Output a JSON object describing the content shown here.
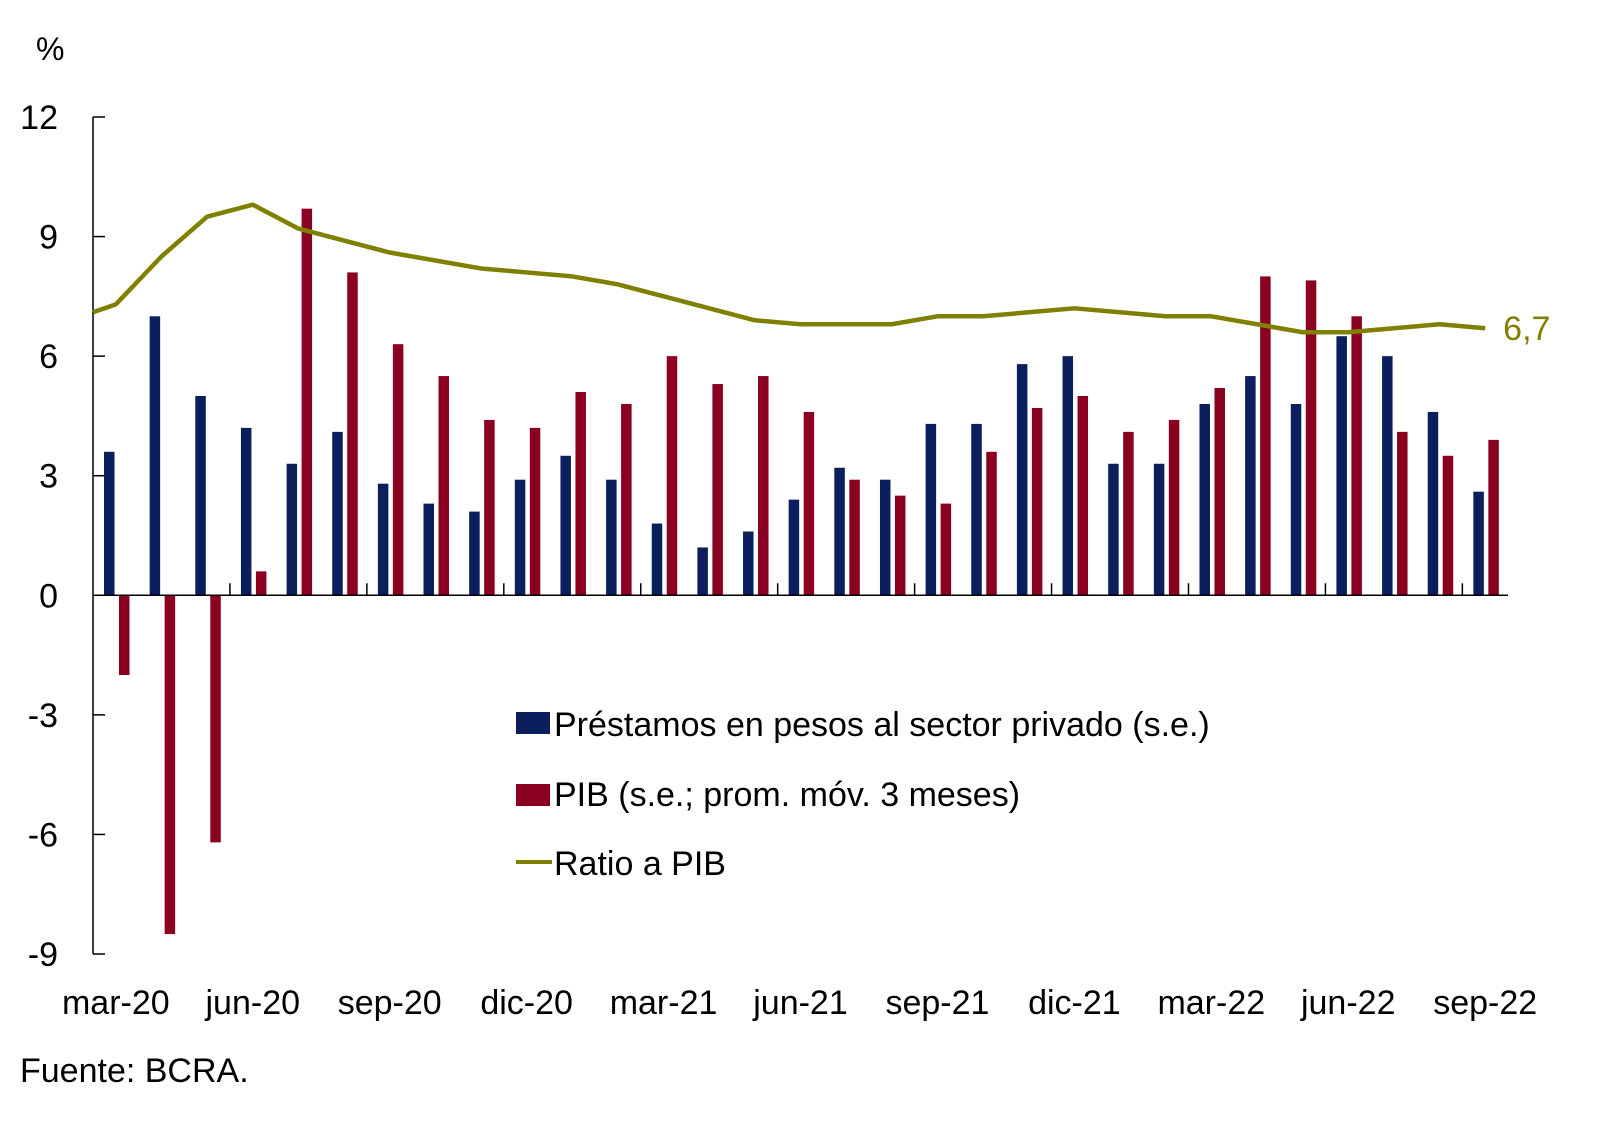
{
  "chart_data": {
    "type": "bar",
    "title": "",
    "ylabel": "%",
    "xlabel": "",
    "ylim": [
      -9,
      12
    ],
    "yticks": [
      12,
      9,
      6,
      3,
      0,
      -3,
      -6,
      -9
    ],
    "ytick_labels": [
      "12",
      "9",
      "6",
      "3",
      "0",
      "-3",
      "-6",
      "-9"
    ],
    "grid": false,
    "legend_position": "center",
    "x": [
      "mar-20",
      "abr-20",
      "may-20",
      "jun-20",
      "jul-20",
      "ago-20",
      "sep-20",
      "oct-20",
      "nov-20",
      "dic-20",
      "ene-21",
      "feb-21",
      "mar-21",
      "abr-21",
      "may-21",
      "jun-21",
      "jul-21",
      "ago-21",
      "sep-21",
      "oct-21",
      "nov-21",
      "dic-21",
      "ene-22",
      "feb-22",
      "mar-22",
      "abr-22",
      "may-22",
      "jun-22",
      "jul-22",
      "ago-22",
      "sep-22"
    ],
    "xtick_labels": [
      "mar-20",
      "jun-20",
      "sep-20",
      "dic-20",
      "mar-21",
      "jun-21",
      "sep-21",
      "dic-21",
      "mar-22",
      "jun-22",
      "sep-22"
    ],
    "xtick_indices": [
      0,
      3,
      6,
      9,
      12,
      15,
      18,
      21,
      24,
      27,
      30
    ],
    "series": [
      {
        "name": "Préstamos en pesos al sector privado (s.e.)",
        "type": "bar",
        "color": "#0a1f5c",
        "values": [
          3.6,
          7.0,
          5.0,
          4.2,
          3.3,
          4.1,
          2.8,
          2.3,
          2.1,
          2.9,
          3.5,
          2.9,
          1.8,
          1.2,
          1.6,
          2.4,
          3.2,
          2.9,
          4.3,
          4.3,
          5.8,
          6.0,
          3.3,
          3.3,
          4.8,
          5.5,
          4.8,
          6.5,
          6.0,
          4.6,
          2.6
        ]
      },
      {
        "name": "PIB (s.e.; prom. móv. 3 meses)",
        "type": "bar",
        "color": "#8b0020",
        "values": [
          -2.0,
          -8.5,
          -6.2,
          0.6,
          9.7,
          8.1,
          6.3,
          5.5,
          4.4,
          4.2,
          5.1,
          4.8,
          6.0,
          5.3,
          5.5,
          4.6,
          2.9,
          2.5,
          2.3,
          3.6,
          4.7,
          5.0,
          4.1,
          4.4,
          5.2,
          8.0,
          7.9,
          7.0,
          4.1,
          3.5,
          3.9
        ]
      },
      {
        "name": "Ratio a PIB",
        "type": "line",
        "color": "#808000",
        "start_value": 7.1,
        "values": [
          7.3,
          8.5,
          9.5,
          9.8,
          9.2,
          8.9,
          8.6,
          8.4,
          8.2,
          8.1,
          8.0,
          7.8,
          7.5,
          7.2,
          6.9,
          6.8,
          6.8,
          6.8,
          7.0,
          7.0,
          7.1,
          7.2,
          7.1,
          7.0,
          7.0,
          6.8,
          6.6,
          6.6,
          6.7,
          6.8,
          6.7
        ]
      }
    ],
    "annotations": [
      {
        "text": "6,7",
        "series": "Ratio a PIB",
        "at": "sep-22"
      }
    ]
  },
  "legend": {
    "items": [
      {
        "label": "Préstamos en pesos al sector privado (s.e.)",
        "marker": "square",
        "color": "#0a1f5c"
      },
      {
        "label": "PIB (s.e.; prom. móv. 3 meses)",
        "marker": "square",
        "color": "#8b0020"
      },
      {
        "label": "Ratio a PIB",
        "marker": "line",
        "color": "#808000"
      }
    ]
  },
  "unit_label": "%",
  "end_label": "6,7",
  "source": "Fuente: BCRA."
}
